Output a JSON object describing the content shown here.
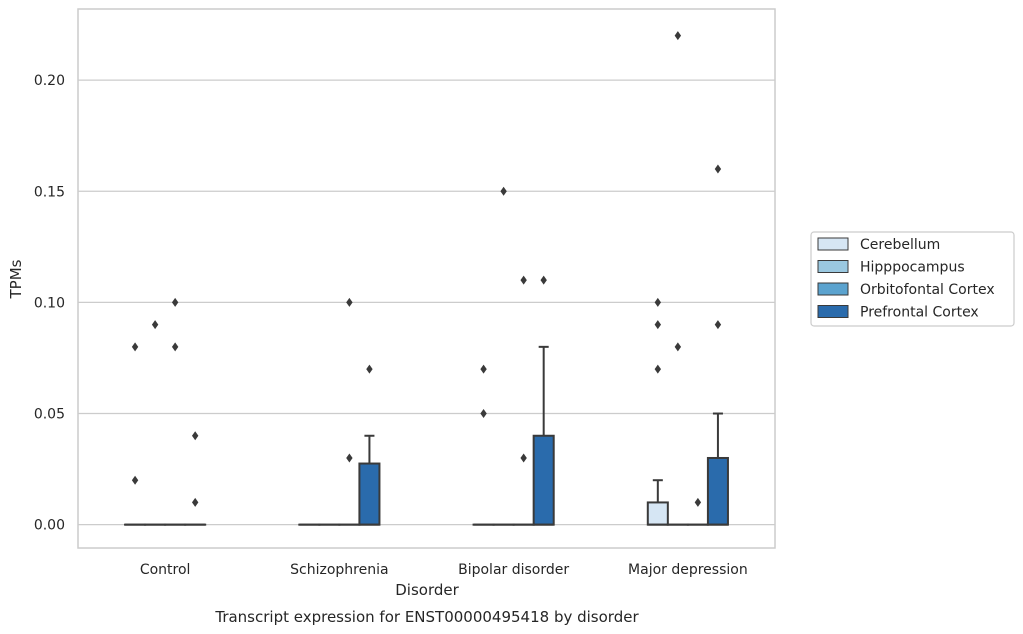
{
  "caption": "Transcript expression for ENST00000495418 by disorder",
  "chart_data": {
    "type": "box",
    "title": "",
    "xlabel": "Disorder",
    "ylabel": "TPMs",
    "ylim": [
      -0.0105,
      0.232
    ],
    "yticks": [
      0.0,
      0.05,
      0.1,
      0.15,
      0.2
    ],
    "ytick_labels": [
      "0.00",
      "0.05",
      "0.10",
      "0.15",
      "0.20"
    ],
    "grid": true,
    "legend_position": "right",
    "categories": [
      "Control",
      "Schizophrenia",
      "Bipolar disorder",
      "Major depression"
    ],
    "series": [
      {
        "name": "Cerebellum",
        "color": "#d6e6f4",
        "boxes": [
          {
            "whislo": 0,
            "q1": 0,
            "med": 0,
            "q3": 0,
            "whishi": 0,
            "fliers": [
              0.08,
              0.02
            ]
          },
          {
            "whislo": 0,
            "q1": 0,
            "med": 0,
            "q3": 0,
            "whishi": 0,
            "fliers": []
          },
          {
            "whislo": 0,
            "q1": 0,
            "med": 0,
            "q3": 0,
            "whishi": 0,
            "fliers": [
              0.07,
              0.05
            ]
          },
          {
            "whislo": 0,
            "q1": 0,
            "med": 0,
            "q3": 0.01,
            "whishi": 0.02,
            "fliers": [
              0.1,
              0.09,
              0.07
            ]
          }
        ]
      },
      {
        "name": "Hipppocampus",
        "color": "#9ac8e0",
        "boxes": [
          {
            "whislo": 0,
            "q1": 0,
            "med": 0,
            "q3": 0,
            "whishi": 0,
            "fliers": [
              0.09
            ]
          },
          {
            "whislo": 0,
            "q1": 0,
            "med": 0,
            "q3": 0,
            "whishi": 0,
            "fliers": []
          },
          {
            "whislo": 0,
            "q1": 0,
            "med": 0,
            "q3": 0,
            "whishi": 0,
            "fliers": [
              0.15
            ]
          },
          {
            "whislo": 0,
            "q1": 0,
            "med": 0,
            "q3": 0,
            "whishi": 0,
            "fliers": [
              0.22,
              0.08
            ]
          }
        ]
      },
      {
        "name": "Orbitofontal Cortex",
        "color": "#5ba3cf",
        "boxes": [
          {
            "whislo": 0,
            "q1": 0,
            "med": 0,
            "q3": 0,
            "whishi": 0,
            "fliers": [
              0.1,
              0.08
            ]
          },
          {
            "whislo": 0,
            "q1": 0,
            "med": 0,
            "q3": 0,
            "whishi": 0,
            "fliers": [
              0.1,
              0.03
            ]
          },
          {
            "whislo": 0,
            "q1": 0,
            "med": 0,
            "q3": 0,
            "whishi": 0,
            "fliers": [
              0.11,
              0.03
            ]
          },
          {
            "whislo": 0,
            "q1": 0,
            "med": 0,
            "q3": 0,
            "whishi": 0,
            "fliers": [
              0.01
            ]
          }
        ]
      },
      {
        "name": "Prefrontal Cortex",
        "color": "#2a6bac",
        "boxes": [
          {
            "whislo": 0,
            "q1": 0,
            "med": 0,
            "q3": 0,
            "whishi": 0,
            "fliers": [
              0.04,
              0.01
            ]
          },
          {
            "whislo": 0,
            "q1": 0,
            "med": 0,
            "q3": 0.0275,
            "whishi": 0.04,
            "fliers": [
              0.07
            ]
          },
          {
            "whislo": 0,
            "q1": 0,
            "med": 0,
            "q3": 0.04,
            "whishi": 0.08,
            "fliers": [
              0.11
            ]
          },
          {
            "whislo": 0,
            "q1": 0,
            "med": 0,
            "q3": 0.03,
            "whishi": 0.05,
            "fliers": [
              0.16,
              0.09
            ]
          }
        ]
      }
    ]
  }
}
